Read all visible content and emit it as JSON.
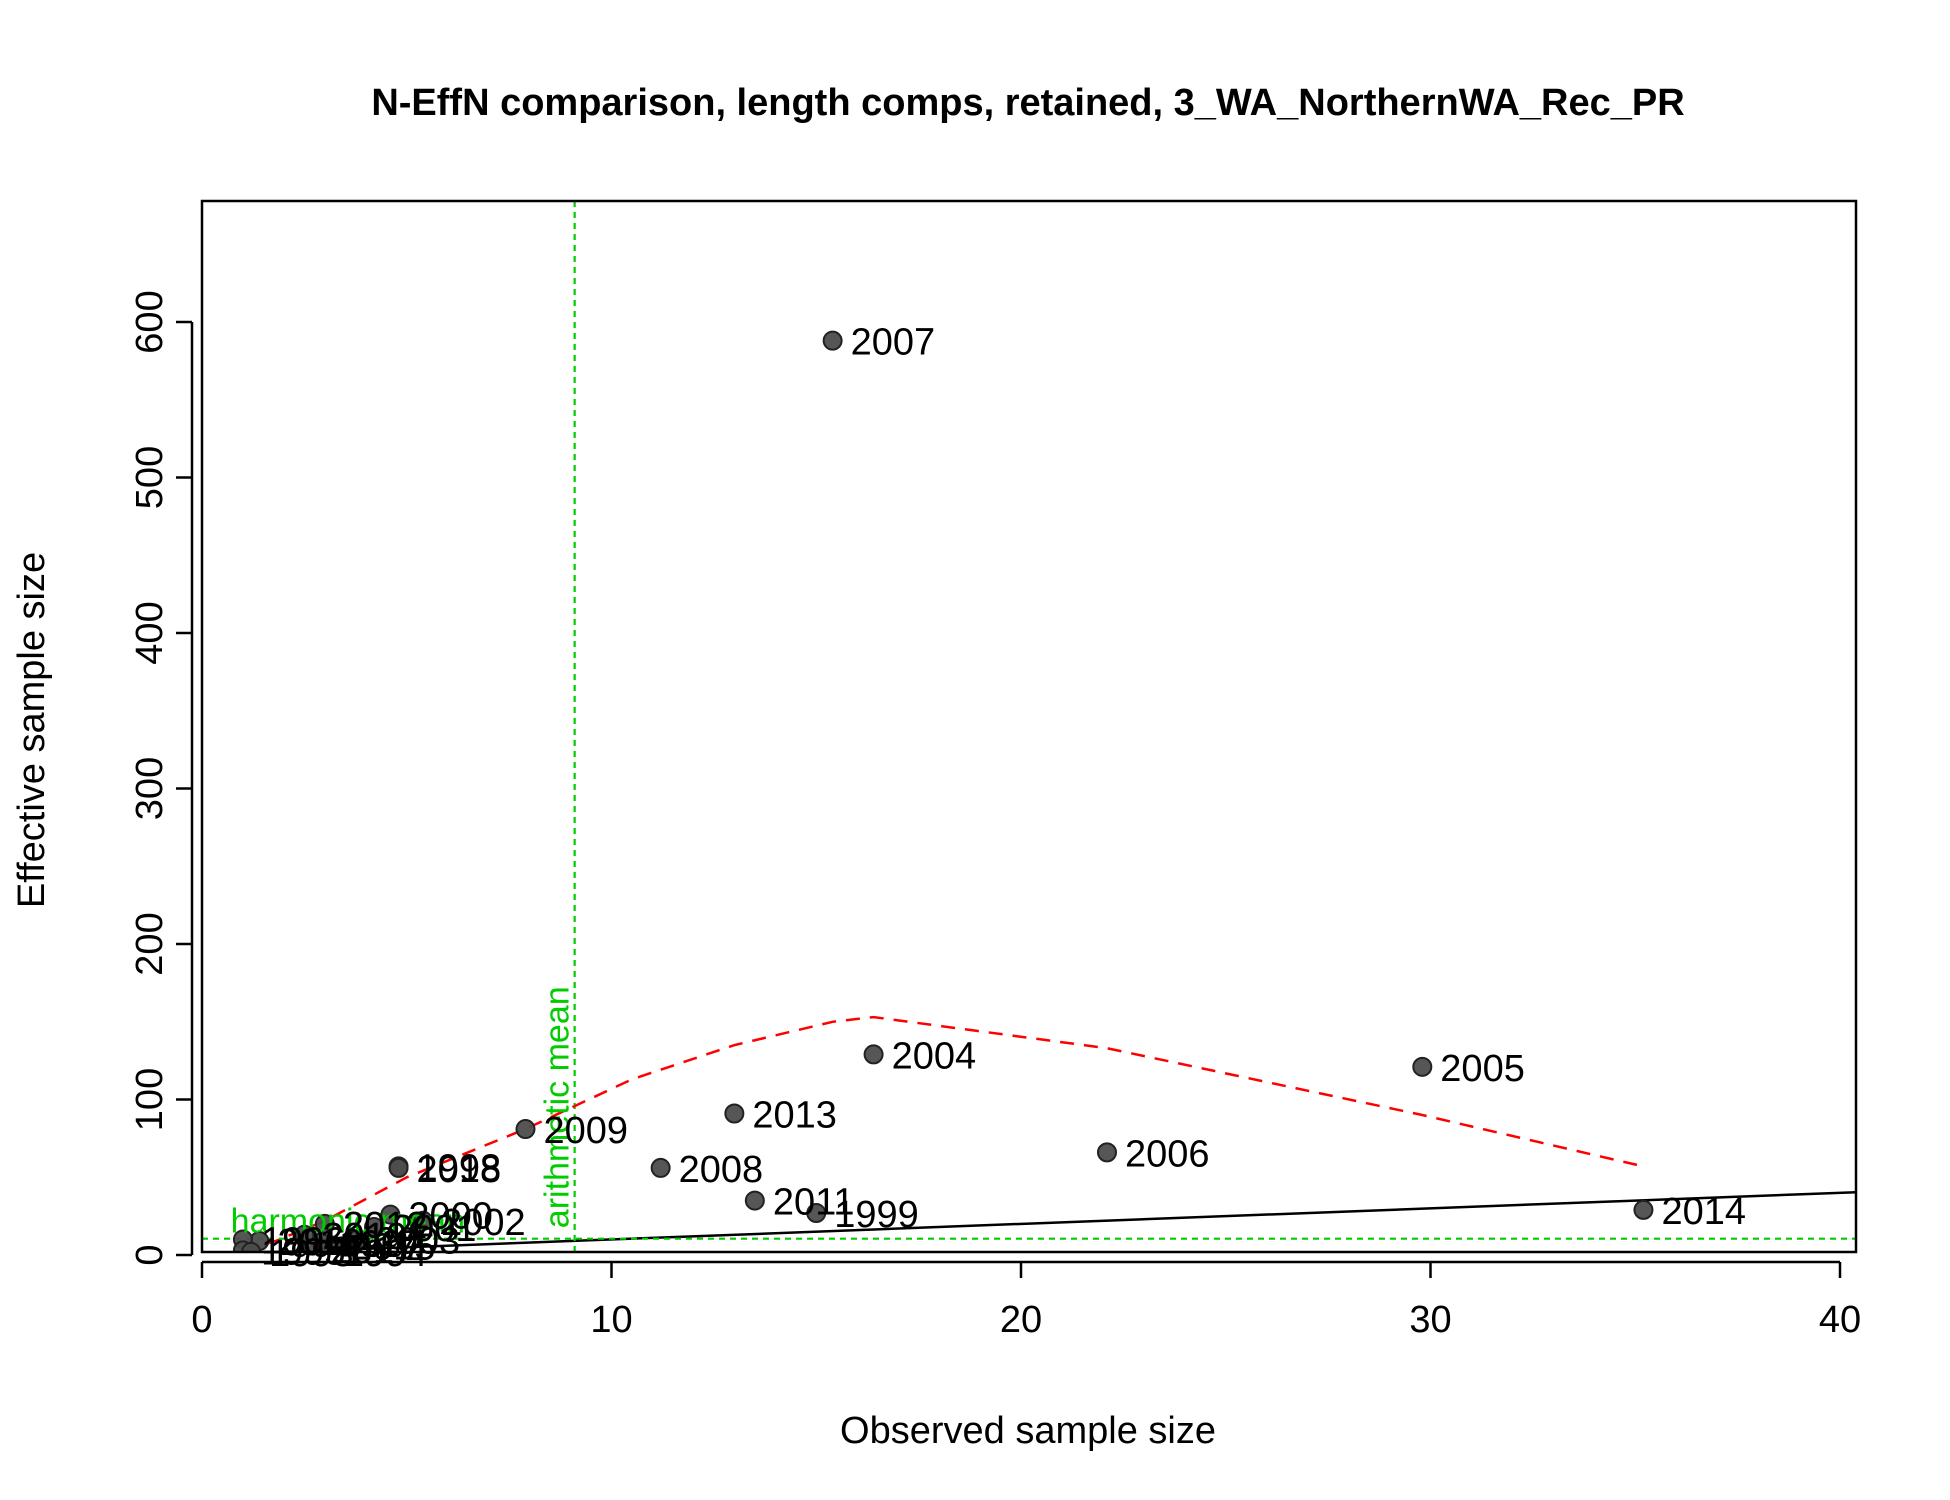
{
  "chart_data": {
    "type": "scatter",
    "title": "N-EffN comparison, length comps, retained, 3_WA_NorthernWA_Rec_PR",
    "xlabel": "Observed sample size",
    "ylabel": "Effective sample size",
    "xlim": [
      0,
      40
    ],
    "ylim": [
      0,
      680
    ],
    "x_ticks": [
      "0",
      "10",
      "20",
      "30",
      "40"
    ],
    "y_ticks": [
      "0",
      "100",
      "200",
      "300",
      "400",
      "500",
      "600"
    ],
    "x_tick_values": [
      0,
      10,
      20,
      30,
      40
    ],
    "y_tick_values": [
      0,
      100,
      200,
      300,
      400,
      500,
      600
    ],
    "grid": false,
    "points": [
      {
        "label": "2007",
        "x": 15.4,
        "y": 588
      },
      {
        "label": "2004",
        "x": 16.4,
        "y": 129
      },
      {
        "label": "2005",
        "x": 29.8,
        "y": 121
      },
      {
        "label": "2013",
        "x": 13.0,
        "y": 91
      },
      {
        "label": "2009",
        "x": 7.9,
        "y": 81
      },
      {
        "label": "2006",
        "x": 22.1,
        "y": 66
      },
      {
        "label": "2008",
        "x": 11.2,
        "y": 56
      },
      {
        "label": "1998",
        "x": 4.8,
        "y": 57
      },
      {
        "label": "2018",
        "x": 4.8,
        "y": 56
      },
      {
        "label": "2011",
        "x": 13.5,
        "y": 35
      },
      {
        "label": "1999",
        "x": 15.0,
        "y": 27
      },
      {
        "label": "2014",
        "x": 35.2,
        "y": 29
      },
      {
        "label": "2000",
        "x": 4.6,
        "y": 26
      },
      {
        "label": "2002",
        "x": 5.4,
        "y": 22
      },
      {
        "label": "2001",
        "x": 4.2,
        "y": 18
      },
      {
        "label": "2012",
        "x": 3.0,
        "y": 20
      },
      {
        "label": "2010",
        "x": 2.5,
        "y": 13
      },
      {
        "label": "2003",
        "x": 3.8,
        "y": 10
      },
      {
        "label": "1997",
        "x": 2.9,
        "y": 8
      },
      {
        "label": "2015",
        "x": 3.2,
        "y": 6
      },
      {
        "label": "2016",
        "x": 1.4,
        "y": 9
      },
      {
        "label": "1996",
        "x": 1.0,
        "y": 10
      },
      {
        "label": "2017",
        "x": 2.7,
        "y": 4
      },
      {
        "label": "1995",
        "x": 1.0,
        "y": 3
      },
      {
        "label": "1993",
        "x": 1.2,
        "y": 2
      },
      {
        "label": "1994",
        "x": 3.0,
        "y": 2
      }
    ],
    "smoother": {
      "x": [
        1.0,
        1.8,
        3.0,
        5.0,
        7.9,
        10.5,
        13.0,
        15.4,
        16.4,
        22.1,
        29.8,
        35.2
      ],
      "y": [
        3,
        9,
        22,
        50,
        81,
        113,
        135,
        150,
        153,
        133,
        90,
        57
      ]
    },
    "one_to_one_line": {
      "slope": 1,
      "intercept": 0
    },
    "arithmetic_mean_x": 9.1,
    "harmonic_mean_y": 10.5,
    "labels": {
      "arithmetic_mean": "arithmetic mean",
      "harmonic_mean": "harmonic mean"
    },
    "colors": {
      "point": "#4d4d4d",
      "smoother": "#ff0000",
      "reference": "#00cc00",
      "one_to_one": "#000000"
    }
  }
}
